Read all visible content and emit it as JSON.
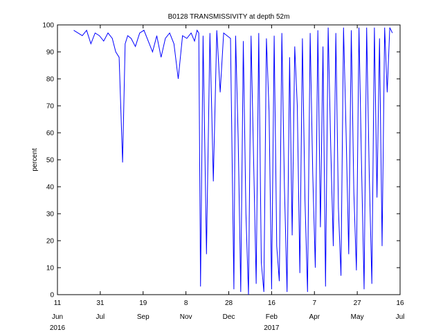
{
  "chart_data": {
    "type": "line",
    "title": "B0128 TRANSMISSIVITY at depth 52m",
    "xlabel": "",
    "ylabel": "percent",
    "ylim": [
      0,
      100
    ],
    "yticks": [
      0,
      10,
      20,
      30,
      40,
      50,
      60,
      70,
      80,
      90,
      100
    ],
    "xlim": [
      "2016-06-11",
      "2017-07-16"
    ],
    "xticks": [
      {
        "date": "2016-06-11",
        "day": "11",
        "month": "Jun"
      },
      {
        "date": "2016-07-31",
        "day": "31",
        "month": "Jul"
      },
      {
        "date": "2016-09-19",
        "day": "19",
        "month": "Sep"
      },
      {
        "date": "2016-11-08",
        "day": "8",
        "month": "Nov"
      },
      {
        "date": "2016-12-28",
        "day": "28",
        "month": "Dec"
      },
      {
        "date": "2017-02-16",
        "day": "16",
        "month": "Feb"
      },
      {
        "date": "2017-04-07",
        "day": "7",
        "month": "Apr"
      },
      {
        "date": "2017-05-27",
        "day": "27",
        "month": "May"
      },
      {
        "date": "2017-07-16",
        "day": "16",
        "month": "Jul"
      }
    ],
    "year_labels": [
      {
        "date": "2016-06-11",
        "label": "2016"
      },
      {
        "date": "2017-02-16",
        "label": "2017"
      }
    ],
    "grid": false,
    "line_color": "#0000ff",
    "series": [
      {
        "x": [
          "2016-06-30",
          "2016-07-05",
          "2016-07-10",
          "2016-07-15",
          "2016-07-20",
          "2016-07-25",
          "2016-07-30",
          "2016-08-04",
          "2016-08-09",
          "2016-08-14",
          "2016-08-18",
          "2016-08-22",
          "2016-08-26",
          "2016-08-29",
          "2016-09-01",
          "2016-09-05",
          "2016-09-10",
          "2016-09-15",
          "2016-09-20",
          "2016-09-25",
          "2016-09-30",
          "2016-10-05",
          "2016-10-10",
          "2016-10-15",
          "2016-10-20",
          "2016-10-25",
          "2016-10-30",
          "2016-11-04",
          "2016-11-09",
          "2016-11-14",
          "2016-11-18",
          "2016-11-21",
          "2016-11-23",
          "2016-11-25",
          "2016-11-28",
          "2016-12-02",
          "2016-12-06",
          "2016-12-10",
          "2016-12-14",
          "2016-12-18",
          "2016-12-22",
          "2016-12-26",
          "2016-12-30",
          "2017-01-03",
          "2017-01-05",
          "2017-01-08",
          "2017-01-11",
          "2017-01-14",
          "2017-01-17",
          "2017-01-20",
          "2017-01-23",
          "2017-01-26",
          "2017-01-29",
          "2017-02-01",
          "2017-02-04",
          "2017-02-07",
          "2017-02-10",
          "2017-02-13",
          "2017-02-16",
          "2017-02-19",
          "2017-02-22",
          "2017-02-25",
          "2017-02-28",
          "2017-03-03",
          "2017-03-06",
          "2017-03-09",
          "2017-03-12",
          "2017-03-15",
          "2017-03-18",
          "2017-03-21",
          "2017-03-24",
          "2017-03-27",
          "2017-03-30",
          "2017-04-02",
          "2017-04-05",
          "2017-04-08",
          "2017-04-11",
          "2017-04-14",
          "2017-04-17",
          "2017-04-20",
          "2017-04-23",
          "2017-04-26",
          "2017-04-29",
          "2017-05-02",
          "2017-05-05",
          "2017-05-08",
          "2017-05-11",
          "2017-05-14",
          "2017-05-17",
          "2017-05-20",
          "2017-05-23",
          "2017-05-26",
          "2017-05-29",
          "2017-06-01",
          "2017-06-04",
          "2017-06-07",
          "2017-06-10",
          "2017-06-13",
          "2017-06-16",
          "2017-06-19",
          "2017-06-22",
          "2017-06-25",
          "2017-06-28",
          "2017-07-01",
          "2017-07-04",
          "2017-07-07"
        ],
        "y": [
          98,
          97,
          96,
          98,
          93,
          97,
          96,
          94,
          97,
          95,
          90,
          88,
          49,
          93,
          96,
          95,
          92,
          97,
          98,
          94,
          90,
          96,
          88,
          95,
          97,
          93,
          80,
          96,
          95,
          97,
          94,
          98,
          97,
          3,
          96,
          15,
          97,
          42,
          98,
          75,
          97,
          96,
          95,
          2,
          96,
          58,
          1,
          94,
          30,
          0,
          96,
          50,
          4,
          97,
          12,
          1,
          95,
          68,
          2,
          96,
          18,
          5,
          97,
          40,
          1,
          88,
          22,
          92,
          70,
          8,
          95,
          35,
          1,
          97,
          45,
          10,
          98,
          25,
          92,
          3,
          99,
          55,
          18,
          97,
          32,
          7,
          99,
          60,
          15,
          98,
          38,
          9,
          99,
          48,
          2,
          99,
          44,
          4,
          99,
          36,
          95,
          18,
          99,
          75,
          99,
          97
        ]
      }
    ]
  }
}
